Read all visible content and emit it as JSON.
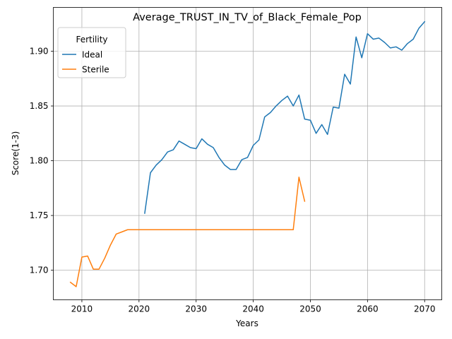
{
  "chart_data": {
    "type": "line",
    "title": "Average_TRUST_IN_TV_of_Black_Female_Pop",
    "xlabel": "Years",
    "ylabel": "Score(1-3)",
    "xlim": [
      2005,
      2073
    ],
    "ylim": [
      1.673,
      1.94
    ],
    "xticks": [
      2010,
      2020,
      2030,
      2040,
      2050,
      2060,
      2070
    ],
    "yticks": [
      1.7,
      1.75,
      1.8,
      1.85,
      1.9
    ],
    "ytick_labels": [
      "1.70",
      "1.75",
      "1.80",
      "1.85",
      "1.90"
    ],
    "grid": true,
    "legend": {
      "title": "Fertility",
      "placement": "top-left"
    },
    "series": [
      {
        "name": "Ideal",
        "color": "#1f77b4",
        "x": [
          2021,
          2022,
          2023,
          2024,
          2025,
          2026,
          2027,
          2028,
          2029,
          2030,
          2031,
          2032,
          2033,
          2034,
          2035,
          2036,
          2037,
          2038,
          2039,
          2040,
          2041,
          2042,
          2043,
          2044,
          2045,
          2046,
          2047,
          2048,
          2049,
          2050,
          2051,
          2052,
          2053,
          2054,
          2055,
          2056,
          2057,
          2058,
          2059,
          2060,
          2061,
          2062,
          2063,
          2064,
          2065,
          2066,
          2067,
          2068,
          2069,
          2070
        ],
        "y": [
          1.752,
          1.789,
          1.796,
          1.801,
          1.808,
          1.81,
          1.818,
          1.815,
          1.812,
          1.811,
          1.82,
          1.815,
          1.812,
          1.803,
          1.796,
          1.792,
          1.792,
          1.801,
          1.803,
          1.814,
          1.819,
          1.84,
          1.844,
          1.85,
          1.855,
          1.859,
          1.85,
          1.86,
          1.838,
          1.837,
          1.825,
          1.833,
          1.824,
          1.849,
          1.848,
          1.879,
          1.87,
          1.913,
          1.894,
          1.916,
          1.911,
          1.912,
          1.908,
          1.903,
          1.904,
          1.901,
          1.907,
          1.911,
          1.921,
          1.927
        ]
      },
      {
        "name": "Sterile",
        "color": "#ff7f0e",
        "x": [
          2008,
          2009,
          2010,
          2011,
          2012,
          2013,
          2014,
          2015,
          2016,
          2017,
          2018,
          2019,
          2020,
          2021,
          2022,
          2023,
          2024,
          2025,
          2026,
          2027,
          2028,
          2029,
          2030,
          2031,
          2032,
          2033,
          2034,
          2035,
          2036,
          2037,
          2038,
          2039,
          2040,
          2041,
          2042,
          2043,
          2044,
          2045,
          2046,
          2047,
          2048,
          2049
        ],
        "y": [
          1.689,
          1.685,
          1.712,
          1.713,
          1.701,
          1.701,
          1.711,
          1.723,
          1.733,
          1.735,
          1.737,
          1.737,
          1.737,
          1.737,
          1.737,
          1.737,
          1.737,
          1.737,
          1.737,
          1.737,
          1.737,
          1.737,
          1.737,
          1.737,
          1.737,
          1.737,
          1.737,
          1.737,
          1.737,
          1.737,
          1.737,
          1.737,
          1.737,
          1.737,
          1.737,
          1.737,
          1.737,
          1.737,
          1.737,
          1.737,
          1.785,
          1.763
        ]
      }
    ]
  }
}
